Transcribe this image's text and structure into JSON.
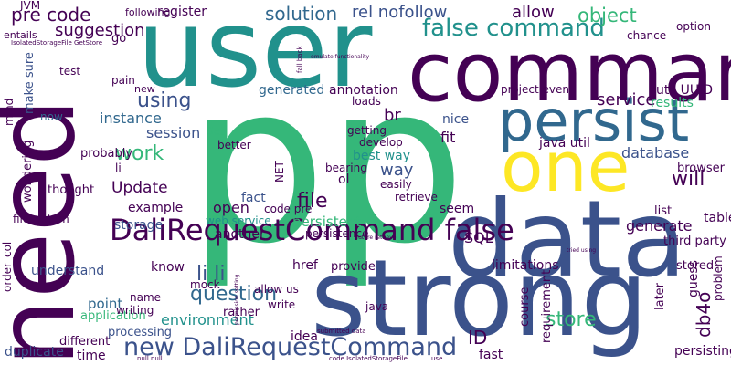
{
  "palette": {
    "purple": "#440154",
    "indigo": "#3b528b",
    "blue": "#31688e",
    "teal": "#21918c",
    "green": "#35b779",
    "lime": "#90d743",
    "yellow": "#fde725",
    "darkblue": "#414487"
  },
  "words": [
    "user",
    "pp",
    "need",
    "command",
    "data",
    "strong",
    "persist",
    "one",
    "DaliRequestCommand false",
    "new DaliRequestCommand",
    "pre code",
    "solution",
    "false command",
    "object",
    "allow",
    "rel nofollow",
    "suggestion",
    "using",
    "work",
    "file",
    "li li",
    "question",
    "Update",
    "session",
    "instance",
    "environment",
    "store",
    "ID",
    "persistent",
    "service",
    "database",
    "will",
    "generate",
    "way",
    "br",
    "annotation",
    "generated",
    "best way",
    "fit",
    "nice",
    "util UUID",
    "project even",
    "results",
    "java util",
    "open",
    "example",
    "storage",
    "know",
    "web service",
    "another",
    "href",
    "provide",
    "allow us",
    "write",
    "rather",
    "idea",
    "processing",
    "time",
    "different",
    "duplicate",
    "application",
    "point",
    "understand",
    "code pre",
    "fact",
    "seem",
    "list",
    "third party",
    "table",
    "SQL",
    "db4o",
    "guess",
    "problem",
    "requirement",
    "course",
    "persisting",
    "fast",
    "limitations",
    "later",
    "register",
    "following",
    "JVM",
    "entails",
    "pain",
    "test",
    "mind",
    "make sure",
    "now",
    "probably",
    "li",
    "thought",
    "wondering",
    "order_col",
    "filesystem",
    "Set",
    "better",
    "easily",
    "retrieve",
    "bearing",
    "develop",
    "getting",
    "loads",
    "option",
    "chance",
    "browser",
    "new",
    "mock",
    "name",
    "java",
    "NET",
    "persistence",
    "writing",
    "stored",
    "ol",
    "go",
    "use",
    "IsolatedStorageFile GetStore",
    "emulate functionality",
    "fall back",
    "tried using",
    "submitted data",
    "null null",
    "future retrieve",
    "permission setting",
    "code IsolatedStorageFile",
    "mock service"
  ]
}
